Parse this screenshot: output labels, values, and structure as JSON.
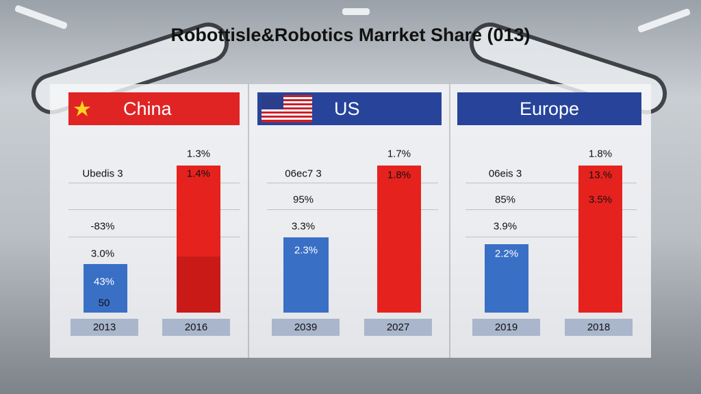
{
  "title": "Robottisle&Robotics Marrket Share (013)",
  "panels": [
    {
      "header": "China",
      "labels": [
        "Ubedis 3",
        "-83%",
        "3.0%"
      ],
      "blue_bar_labels": [
        "43%",
        "50"
      ],
      "red_bar_top": "1.3%",
      "red_bar_labels": [
        "1.4%"
      ],
      "years": [
        "2013",
        "2016"
      ]
    },
    {
      "header": "US",
      "labels": [
        "06ec7 3",
        "95%",
        "3.3%"
      ],
      "blue_bar_labels": [
        "2.3%"
      ],
      "red_bar_top": "1.7%",
      "red_bar_labels": [
        "1.8%"
      ],
      "years": [
        "2039",
        "2027"
      ]
    },
    {
      "header": "Europe",
      "labels": [
        "06eis 3",
        "85%",
        "3.9%"
      ],
      "blue_bar_labels": [
        "2.2%"
      ],
      "red_bar_top": "1.8%",
      "red_bar_labels": [
        "13.%",
        "3.5%"
      ],
      "years": [
        "2019",
        "2018"
      ]
    }
  ]
}
